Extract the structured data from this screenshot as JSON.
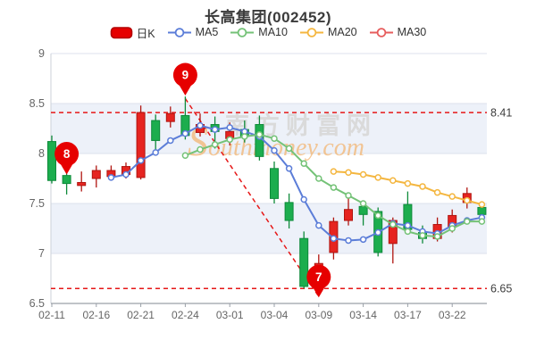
{
  "title": "长高集团(002452)",
  "legend": [
    {
      "label": "日K",
      "type": "swatch",
      "color": "#e60000",
      "border": "#b30000"
    },
    {
      "label": "MA5",
      "type": "line",
      "color": "#5b7dd8"
    },
    {
      "label": "MA10",
      "type": "line",
      "color": "#74c277"
    },
    {
      "label": "MA20",
      "type": "line",
      "color": "#f4b63f"
    },
    {
      "label": "MA30",
      "type": "line",
      "color": "#e65c5c"
    }
  ],
  "chart_data": {
    "type": "candlestick",
    "title": "长高集团(002452)",
    "ylim": [
      6.5,
      9
    ],
    "y_ticks": {
      "values": [
        9,
        8.5,
        8,
        7.5,
        7,
        6.5
      ],
      "labels": [
        "9",
        "8.5",
        "8",
        "7.5",
        "7",
        "6.5"
      ]
    },
    "x_tick_indices": [
      0,
      3,
      6,
      9,
      12,
      15,
      18,
      21,
      24,
      27
    ],
    "x_tick_labels": [
      "02-11",
      "02-16",
      "02-21",
      "02-24",
      "03-01",
      "03-04",
      "03-09",
      "03-14",
      "03-17",
      "03-22"
    ],
    "grid": "horizontal-bands",
    "legend_position": "top",
    "candles": [
      {
        "date": "02-11",
        "o": 8.12,
        "h": 8.18,
        "l": 7.7,
        "c": 7.73
      },
      {
        "date": "02-14",
        "o": 7.78,
        "h": 7.8,
        "l": 7.59,
        "c": 7.7
      },
      {
        "date": "02-15",
        "o": 7.68,
        "h": 7.82,
        "l": 7.62,
        "c": 7.71
      },
      {
        "date": "02-16",
        "o": 7.75,
        "h": 7.88,
        "l": 7.66,
        "c": 7.83
      },
      {
        "date": "02-17",
        "o": 7.77,
        "h": 7.88,
        "l": 7.75,
        "c": 7.83
      },
      {
        "date": "02-18",
        "o": 7.79,
        "h": 7.91,
        "l": 7.75,
        "c": 7.87
      },
      {
        "date": "02-21",
        "o": 7.76,
        "h": 8.48,
        "l": 7.74,
        "c": 8.41
      },
      {
        "date": "02-22",
        "o": 8.33,
        "h": 8.39,
        "l": 8.04,
        "c": 8.13
      },
      {
        "date": "02-23",
        "o": 8.32,
        "h": 8.47,
        "l": 8.26,
        "c": 8.4
      },
      {
        "date": "02-24",
        "o": 8.38,
        "h": 8.57,
        "l": 8.14,
        "c": 8.18
      },
      {
        "date": "02-25",
        "o": 8.21,
        "h": 8.4,
        "l": 8.17,
        "c": 8.29
      },
      {
        "date": "02-28",
        "o": 8.29,
        "h": 8.37,
        "l": 8.05,
        "c": 8.22
      },
      {
        "date": "03-01",
        "o": 8.15,
        "h": 8.31,
        "l": 8.08,
        "c": 8.22
      },
      {
        "date": "03-02",
        "o": 8.24,
        "h": 8.33,
        "l": 8.11,
        "c": 8.17
      },
      {
        "date": "03-03",
        "o": 8.29,
        "h": 8.38,
        "l": 7.93,
        "c": 7.97
      },
      {
        "date": "03-04",
        "o": 7.85,
        "h": 7.92,
        "l": 7.5,
        "c": 7.55
      },
      {
        "date": "03-07",
        "o": 7.51,
        "h": 7.6,
        "l": 7.25,
        "c": 7.33
      },
      {
        "date": "03-08",
        "o": 7.15,
        "h": 7.22,
        "l": 6.65,
        "c": 6.67
      },
      {
        "date": "03-09",
        "o": 6.7,
        "h": 6.99,
        "l": 6.65,
        "c": 6.9
      },
      {
        "date": "03-10",
        "o": 7.01,
        "h": 7.36,
        "l": 6.94,
        "c": 7.32
      },
      {
        "date": "03-11",
        "o": 7.33,
        "h": 7.55,
        "l": 7.28,
        "c": 7.44
      },
      {
        "date": "03-14",
        "o": 7.47,
        "h": 7.5,
        "l": 7.28,
        "c": 7.39
      },
      {
        "date": "03-15",
        "o": 7.42,
        "h": 7.46,
        "l": 6.97,
        "c": 7.01
      },
      {
        "date": "03-16",
        "o": 7.1,
        "h": 7.36,
        "l": 6.9,
        "c": 7.33
      },
      {
        "date": "03-17",
        "o": 7.49,
        "h": 7.62,
        "l": 7.2,
        "c": 7.24
      },
      {
        "date": "03-18",
        "o": 7.21,
        "h": 7.28,
        "l": 7.1,
        "c": 7.15
      },
      {
        "date": "03-21",
        "o": 7.15,
        "h": 7.36,
        "l": 7.12,
        "c": 7.29
      },
      {
        "date": "03-22",
        "o": 7.27,
        "h": 7.44,
        "l": 7.21,
        "c": 7.38
      },
      {
        "date": "03-23",
        "o": 7.51,
        "h": 7.66,
        "l": 7.45,
        "c": 7.6
      },
      {
        "date": "03-24",
        "o": 7.46,
        "h": 7.49,
        "l": 7.36,
        "c": 7.39
      }
    ],
    "series": [
      {
        "name": "MA5",
        "start_index": 4,
        "values": [
          7.76,
          7.79,
          7.93,
          8.01,
          8.13,
          8.2,
          8.28,
          8.24,
          8.26,
          8.22,
          8.17,
          8.03,
          7.85,
          7.54,
          7.28,
          7.15,
          7.13,
          7.14,
          7.21,
          7.3,
          7.28,
          7.22,
          7.2,
          7.28,
          7.33,
          7.36
        ]
      },
      {
        "name": "MA10",
        "start_index": 9,
        "values": [
          7.98,
          8.04,
          8.09,
          8.14,
          8.17,
          8.19,
          8.15,
          8.05,
          7.9,
          7.75,
          7.66,
          7.58,
          7.5,
          7.38,
          7.29,
          7.22,
          7.18,
          7.17,
          7.25,
          7.32,
          7.32
        ]
      },
      {
        "name": "MA20",
        "start_index": 19,
        "values": [
          7.82,
          7.81,
          7.79,
          7.76,
          7.73,
          7.7,
          7.67,
          7.61,
          7.57,
          7.53,
          7.49
        ]
      },
      {
        "name": "MA30",
        "start_index": null,
        "values": []
      }
    ],
    "ref_lines": [
      {
        "value": 8.41,
        "label": "8.41"
      },
      {
        "value": 6.65,
        "label": "6.65"
      }
    ],
    "trend_line": {
      "from_index": 9,
      "from_price": 8.55,
      "to_index": 18,
      "to_price": 6.57
    },
    "markers": [
      {
        "label": "8",
        "index": 1,
        "tip_price": 7.79
      },
      {
        "label": "9",
        "index": 9,
        "tip_price": 8.58
      },
      {
        "label": "7",
        "index": 18,
        "tip_price": 6.56
      }
    ],
    "watermark": {
      "text_cn": "南方财富网",
      "text_en": "Southmoney.com"
    }
  },
  "colors": {
    "up_fill": "#e62420",
    "up_stroke": "#b01510",
    "down_fill": "#1cad4e",
    "down_stroke": "#0e8a3a",
    "ref_red": "#e61717",
    "balloon": "#e60000",
    "band": "#edf1f9",
    "grid": "#dce1ec",
    "axis": "#9aa0a8",
    "tick_text": "#666666",
    "ref_label_text": "#3c3c3c",
    "watermark_gray": "#dadada",
    "watermark_orange": "#f3b26a"
  }
}
